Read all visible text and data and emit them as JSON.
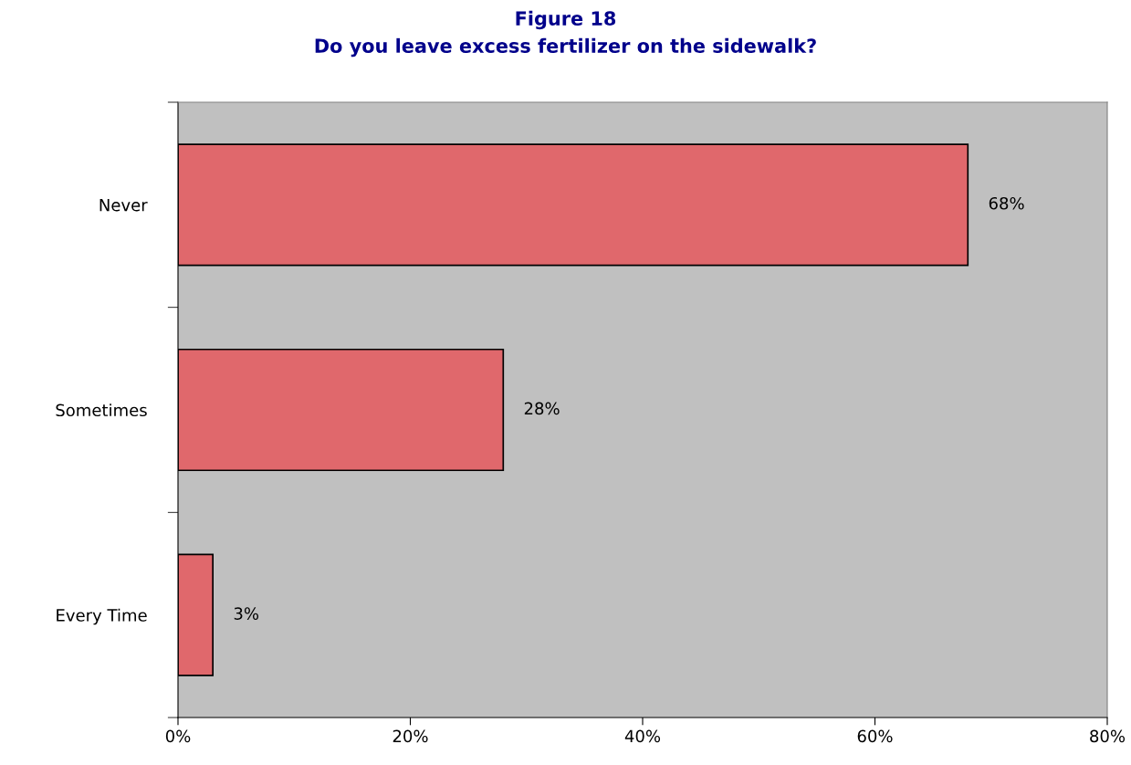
{
  "chart_data": {
    "type": "bar",
    "orientation": "horizontal",
    "title": "Figure 18",
    "subtitle": "Do you leave excess fertilizer on the sidewalk?",
    "categories": [
      "Never",
      "Sometimes",
      "Every Time"
    ],
    "values": [
      68,
      28,
      3
    ],
    "value_labels": [
      "68%",
      "28%",
      "3%"
    ],
    "color": "#e0686c",
    "xlim": [
      0,
      80
    ],
    "xticks": [
      {
        "value": 0,
        "label": "0%"
      },
      {
        "value": 20,
        "label": "20%"
      },
      {
        "value": 40,
        "label": "40%"
      },
      {
        "value": 60,
        "label": "60%"
      },
      {
        "value": 80,
        "label": "80%"
      }
    ],
    "grid": false,
    "legend": false
  }
}
